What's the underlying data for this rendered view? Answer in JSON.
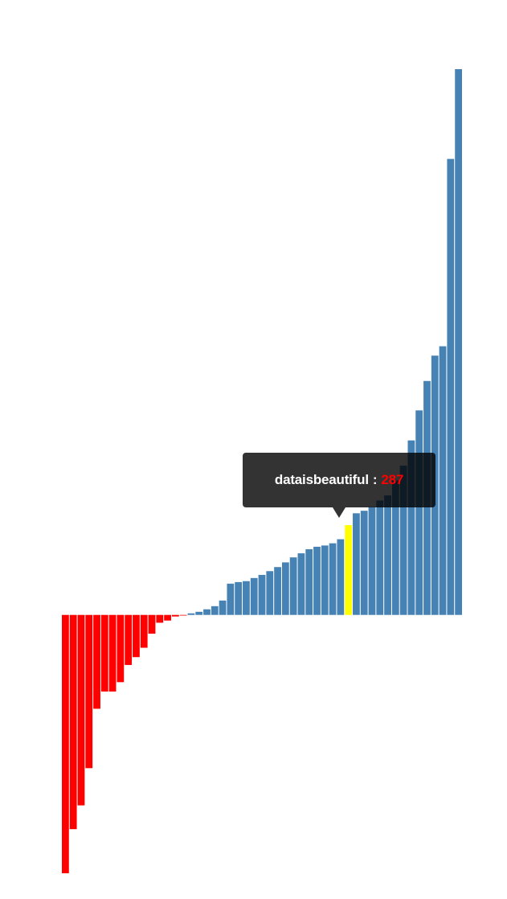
{
  "chart_data": {
    "type": "bar",
    "title": "",
    "xlabel": "",
    "ylabel": "",
    "grid": false,
    "ylim": [
      -826,
      1745
    ],
    "colors": {
      "positive": "#4682b4",
      "negative": "#ff0000",
      "highlight": "#ffff00"
    },
    "values": [
      -826,
      -685,
      -609,
      -490,
      -300,
      -245,
      -245,
      -215,
      -160,
      -135,
      -105,
      -60,
      -25,
      -18,
      -5,
      -2,
      5,
      10,
      18,
      28,
      46,
      100,
      105,
      108,
      118,
      128,
      140,
      153,
      168,
      184,
      197,
      210,
      218,
      222,
      229,
      242,
      287,
      325,
      333,
      345,
      366,
      382,
      430,
      477,
      558,
      654,
      748,
      829,
      859,
      1458,
      1745
    ],
    "highlight_index": 36
  },
  "tooltip": {
    "label": "dataisbeautiful",
    "separator": ":",
    "value": "287"
  }
}
